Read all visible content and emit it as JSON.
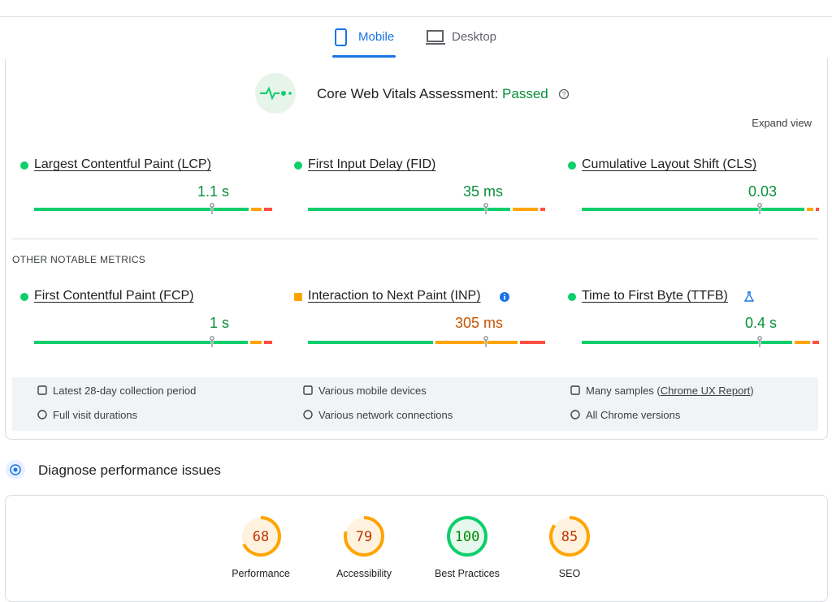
{
  "tabs": [
    "Mobile",
    "Desktop"
  ],
  "assessment": {
    "label": "Core Web Vitals Assessment:",
    "status": "Passed"
  },
  "expand": "Expand view",
  "core_metrics": [
    {
      "name": "Largest Contentful Paint (LCP)",
      "value": "1.1 s",
      "color": "#0cce6b"
    },
    {
      "name": "First Input Delay (FID)",
      "value": "35 ms",
      "color": "#0cce6b"
    },
    {
      "name": "Cumulative Layout Shift (CLS)",
      "value": "0.03",
      "color": "#0cce6b"
    }
  ],
  "other_heading": "OTHER NOTABLE METRICS",
  "other_metrics": [
    {
      "name": "First Contentful Paint (FCP)",
      "value": "1 s",
      "color": "#0cce6b"
    },
    {
      "name": "Interaction to Next Paint (INP)",
      "value": "305 ms",
      "color": "#ffa400"
    },
    {
      "name": "Time to First Byte (TTFB)",
      "value": "0.4 s",
      "color": "#0cce6b"
    }
  ],
  "notes": [
    [
      "Latest 28-day collection period",
      "Various mobile devices",
      {
        "before": "Many samples (",
        "link": "Chrome UX Report",
        "after": ")"
      }
    ],
    [
      "Full visit durations",
      "Various network connections",
      "All Chrome versions"
    ]
  ],
  "diagnose": "Diagnose performance issues",
  "scores": [
    {
      "label": "Performance",
      "score": 68
    },
    {
      "label": "Accessibility",
      "score": 79
    },
    {
      "label": "Best Practices",
      "score": 100
    },
    {
      "label": "SEO",
      "score": 85
    }
  ]
}
